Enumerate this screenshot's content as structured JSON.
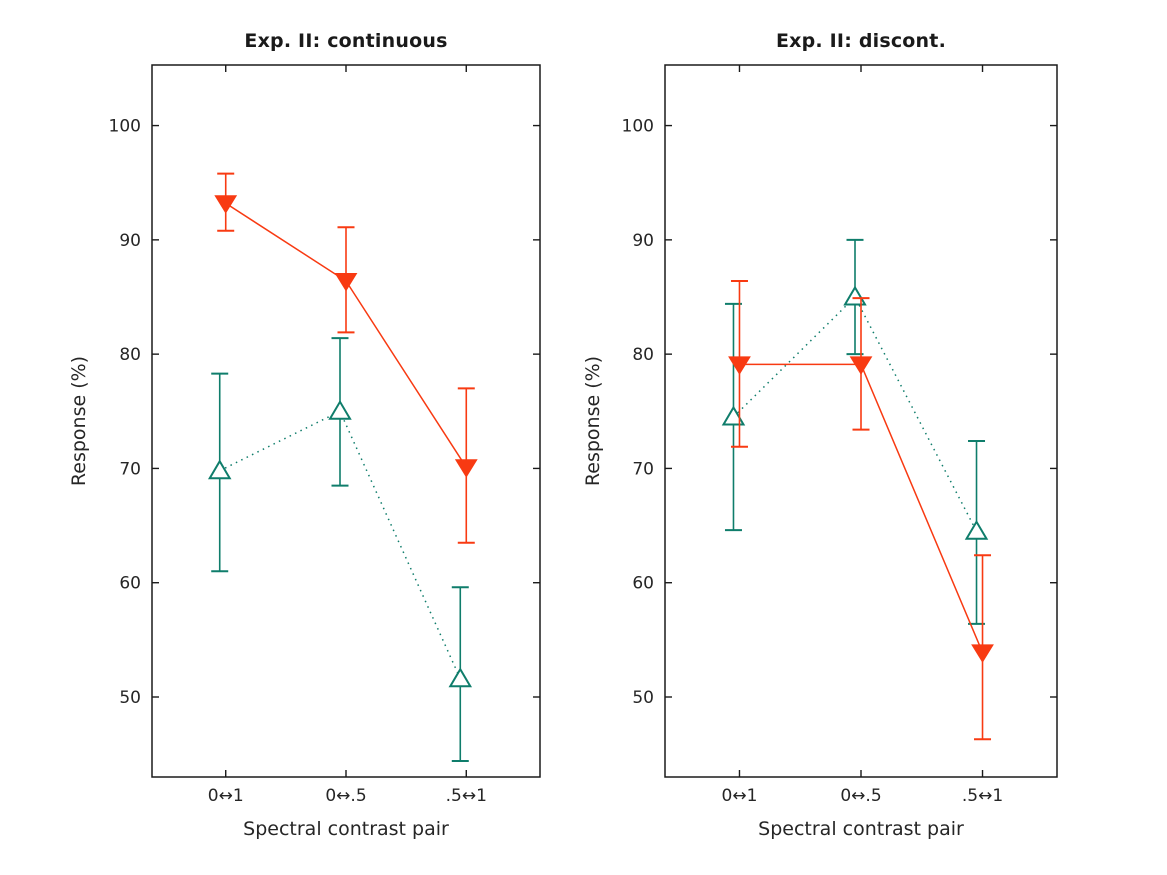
{
  "figure": {
    "background": "#ffffff",
    "text_color": "#262626",
    "axis_color": "#1a1a1a"
  },
  "chart_data": [
    {
      "type": "line",
      "title": "Exp. II: continuous",
      "xlabel": "Spectral contrast pair",
      "ylabel": "Response (%)",
      "categories": [
        "0↔1",
        "0↔.5",
        ".5↔1"
      ],
      "ylim": [
        43,
        105.3
      ],
      "yticks": [
        50,
        60,
        70,
        80,
        90,
        100
      ],
      "grid": false,
      "legend": "none",
      "series": [
        {
          "id": "red-triangle-down-solid",
          "marker": "triangle-down-filled",
          "line_style": "solid",
          "color": "#f83a12",
          "values": [
            93.2,
            86.4,
            70.1
          ],
          "err_lower": [
            90.8,
            81.9,
            63.5
          ],
          "err_upper": [
            95.8,
            91.1,
            77.0
          ]
        },
        {
          "id": "teal-triangle-up-dotted",
          "marker": "triangle-up-open",
          "line_style": "dotted",
          "color": "#0f7d6b",
          "values": [
            69.8,
            75.0,
            51.6
          ],
          "err_lower": [
            61.0,
            68.5,
            44.4
          ],
          "err_upper": [
            78.3,
            81.4,
            59.6
          ]
        }
      ]
    },
    {
      "type": "line",
      "title": "Exp. II: discont.",
      "xlabel": "Spectral contrast pair",
      "ylabel": "Response (%)",
      "categories": [
        "0↔1",
        "0↔.5",
        ".5↔1"
      ],
      "ylim": [
        43,
        105.3
      ],
      "yticks": [
        50,
        60,
        70,
        80,
        90,
        100
      ],
      "grid": false,
      "legend": "none",
      "series": [
        {
          "id": "red-triangle-down-solid",
          "marker": "triangle-down-filled",
          "line_style": "solid",
          "color": "#f83a12",
          "values": [
            79.1,
            79.1,
            53.9
          ],
          "err_lower": [
            71.9,
            73.4,
            46.3
          ],
          "err_upper": [
            86.4,
            84.9,
            62.4
          ]
        },
        {
          "id": "teal-triangle-up-dotted",
          "marker": "triangle-up-open",
          "line_style": "dotted",
          "color": "#0f7d6b",
          "values": [
            74.5,
            85.0,
            64.5
          ],
          "err_lower": [
            64.6,
            80.0,
            56.4
          ],
          "err_upper": [
            84.4,
            90.0,
            72.4
          ]
        }
      ]
    }
  ]
}
